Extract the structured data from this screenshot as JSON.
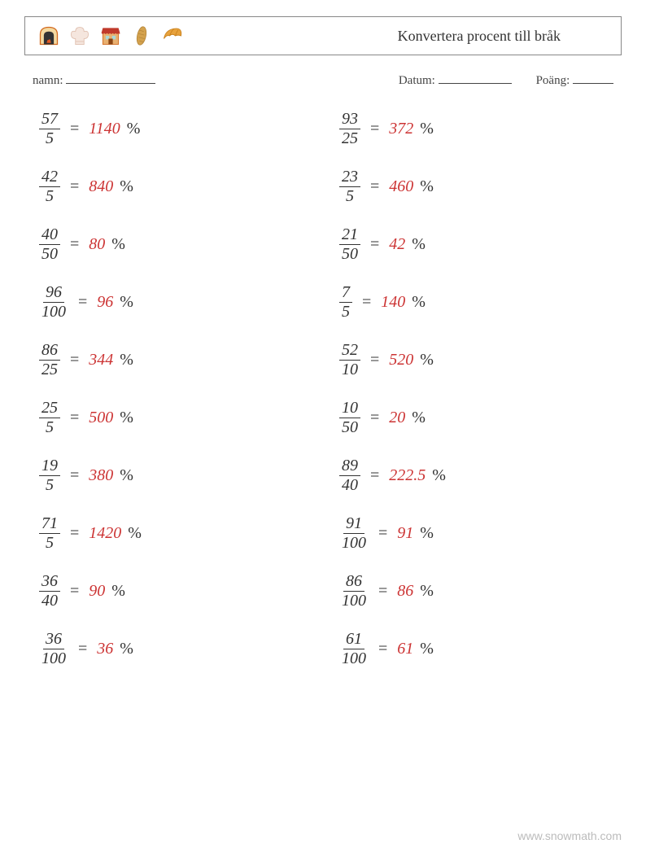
{
  "header": {
    "title": "Konvertera procent till bråk",
    "icons": [
      "oven-icon",
      "chef-hat-icon",
      "shop-icon",
      "bread-icon",
      "croissant-icon"
    ]
  },
  "meta": {
    "name_label": "namn:",
    "date_label": "Datum:",
    "score_label": "Poäng:"
  },
  "style": {
    "answer_color": "#cc3333",
    "text_color": "#333333",
    "border_color": "#888888",
    "background_color": "#ffffff",
    "font_family": "Georgia, 'Times New Roman', serif",
    "title_fontsize": 18,
    "problem_fontsize": 20,
    "meta_fontsize": 15,
    "footer_color": "#bbbbbb",
    "columns": 2,
    "row_gap": 26,
    "icon_colors": {
      "oven": "#d2691e",
      "chef_hat": "#e8c4b8",
      "shop_wall": "#d2691e",
      "shop_awning": "#c0392b",
      "bread": "#d4a24e",
      "croissant": "#e8a23c"
    }
  },
  "problems": {
    "left": [
      {
        "numerator": "57",
        "denominator": "5",
        "answer": "1140"
      },
      {
        "numerator": "42",
        "denominator": "5",
        "answer": "840"
      },
      {
        "numerator": "40",
        "denominator": "50",
        "answer": "80"
      },
      {
        "numerator": "96",
        "denominator": "100",
        "answer": "96"
      },
      {
        "numerator": "86",
        "denominator": "25",
        "answer": "344"
      },
      {
        "numerator": "25",
        "denominator": "5",
        "answer": "500"
      },
      {
        "numerator": "19",
        "denominator": "5",
        "answer": "380"
      },
      {
        "numerator": "71",
        "denominator": "5",
        "answer": "1420"
      },
      {
        "numerator": "36",
        "denominator": "40",
        "answer": "90"
      },
      {
        "numerator": "36",
        "denominator": "100",
        "answer": "36"
      }
    ],
    "right": [
      {
        "numerator": "93",
        "denominator": "25",
        "answer": "372"
      },
      {
        "numerator": "23",
        "denominator": "5",
        "answer": "460"
      },
      {
        "numerator": "21",
        "denominator": "50",
        "answer": "42"
      },
      {
        "numerator": "7",
        "denominator": "5",
        "answer": "140"
      },
      {
        "numerator": "52",
        "denominator": "10",
        "answer": "520"
      },
      {
        "numerator": "10",
        "denominator": "50",
        "answer": "20"
      },
      {
        "numerator": "89",
        "denominator": "40",
        "answer": "222.5"
      },
      {
        "numerator": "91",
        "denominator": "100",
        "answer": "91"
      },
      {
        "numerator": "86",
        "denominator": "100",
        "answer": "86"
      },
      {
        "numerator": "61",
        "denominator": "100",
        "answer": "61"
      }
    ]
  },
  "symbols": {
    "equals": "=",
    "percent": "%"
  },
  "footer": {
    "text": "www.snowmath.com"
  }
}
